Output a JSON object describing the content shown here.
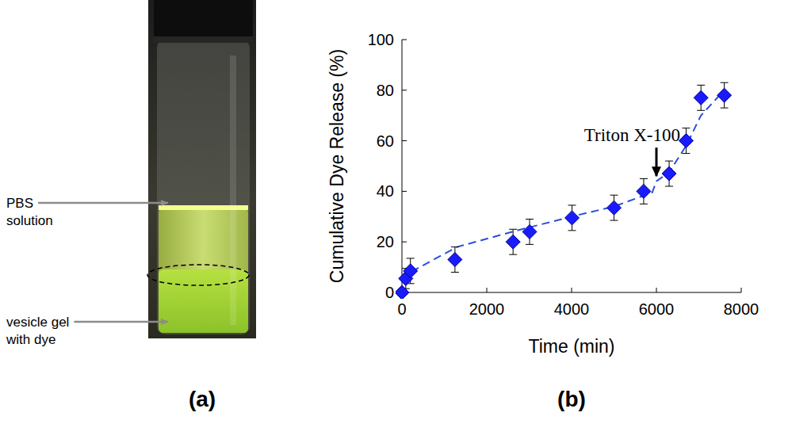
{
  "panel_labels": [
    "(a)",
    "(b)"
  ],
  "photo": {
    "labels": [
      {
        "lines": [
          "PBS",
          "solution"
        ]
      },
      {
        "lines": [
          "vesicle gel",
          "with dye"
        ]
      }
    ]
  },
  "chart_data": {
    "type": "scatter",
    "x_label": "Time (min)",
    "y_label": "Cumulative Dye Release (%)",
    "xlim": [
      0,
      8000
    ],
    "ylim": [
      0,
      100
    ],
    "xticks": [
      0,
      2000,
      4000,
      6000,
      8000
    ],
    "yticks": [
      0,
      20,
      40,
      60,
      80,
      100
    ],
    "grid": false,
    "annotations": [
      {
        "text": "Triton X-100",
        "x": 6000,
        "y": 46
      }
    ],
    "series": [
      {
        "type": "scatter",
        "color": "#1a1aff",
        "marker": "diamond",
        "x": [
          0,
          90,
          200,
          1250,
          2620,
          3010,
          4010,
          5000,
          5700,
          6300,
          6700,
          7050,
          7600
        ],
        "values": [
          0,
          5.5,
          8.5,
          13,
          20,
          24,
          29.5,
          33.5,
          40,
          47,
          60,
          77,
          78
        ],
        "errors": [
          0,
          4,
          5,
          5,
          5,
          5,
          5,
          5,
          5,
          5,
          5,
          5,
          5
        ]
      },
      {
        "type": "line",
        "color": "#2b4fdc",
        "line_style": "dashed",
        "x": [
          0,
          200,
          1300,
          2600,
          4000,
          5000,
          5900,
          6000,
          6300,
          6700,
          7050,
          7600
        ],
        "values": [
          5,
          8,
          18,
          24,
          30,
          34,
          39.5,
          44,
          47.5,
          58,
          70,
          80
        ]
      }
    ]
  }
}
